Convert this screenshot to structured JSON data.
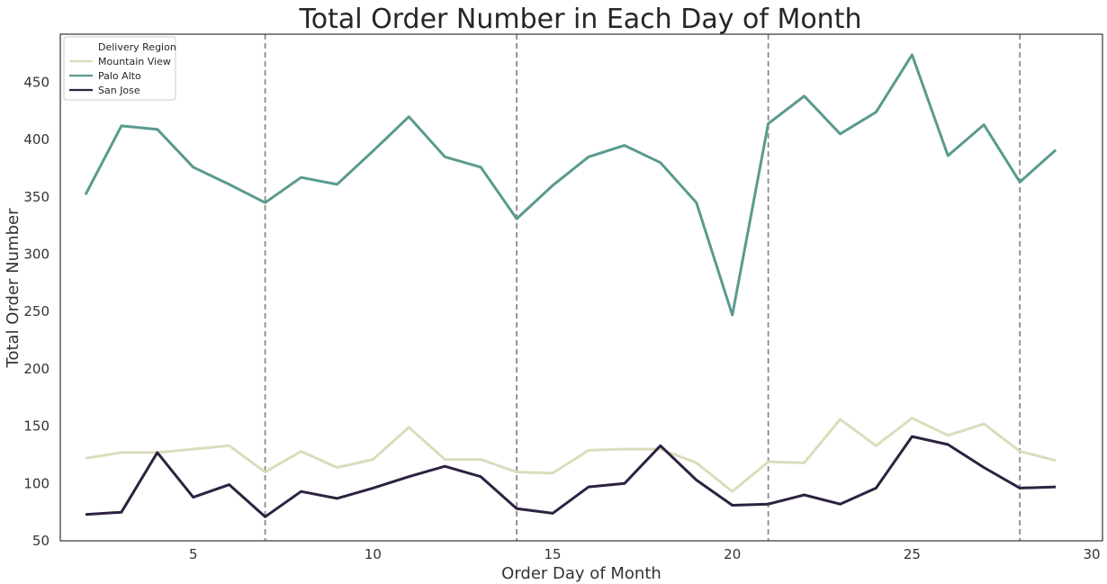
{
  "chart_data": {
    "type": "line",
    "title": "Total Order Number in Each Day of Month",
    "xlabel": "Order Day of Month",
    "ylabel": "Total Order Number",
    "xlim": [
      1.3,
      30.3
    ],
    "ylim": [
      50,
      492
    ],
    "xticks": [
      5,
      10,
      15,
      20,
      25,
      30
    ],
    "yticks": [
      50,
      100,
      150,
      200,
      250,
      300,
      350,
      400,
      450
    ],
    "grid": false,
    "vlines": [
      7,
      14,
      21,
      28
    ],
    "vline_color": "#8c8c8c",
    "legend": {
      "title": "Delivery Region",
      "placement": "top-left"
    },
    "x": [
      2,
      3,
      4,
      5,
      6,
      7,
      8,
      9,
      10,
      11,
      12,
      13,
      14,
      15,
      16,
      17,
      18,
      19,
      20,
      21,
      22,
      23,
      24,
      25,
      26,
      27,
      28,
      29
    ],
    "series": [
      {
        "name": "Mountain View",
        "color": "#dcdcbc",
        "values": [
          122,
          127,
          127,
          130,
          133,
          110,
          128,
          114,
          121,
          149,
          121,
          121,
          110,
          109,
          129,
          130,
          130,
          118,
          93,
          119,
          118,
          156,
          133,
          157,
          142,
          152,
          128,
          120
        ]
      },
      {
        "name": "Palo Alto",
        "color": "#5a9a8f",
        "values": [
          352,
          412,
          409,
          376,
          361,
          345,
          367,
          361,
          390,
          420,
          385,
          376,
          331,
          360,
          385,
          395,
          380,
          345,
          247,
          414,
          438,
          405,
          424,
          474,
          386,
          413,
          363,
          391
        ]
      },
      {
        "name": "San Jose",
        "color": "#2e2240",
        "values": [
          73,
          75,
          127,
          88,
          99,
          71,
          93,
          87,
          96,
          106,
          115,
          106,
          78,
          74,
          97,
          100,
          133,
          103,
          81,
          82,
          90,
          82,
          96,
          141,
          134,
          114,
          96,
          97
        ]
      }
    ]
  }
}
